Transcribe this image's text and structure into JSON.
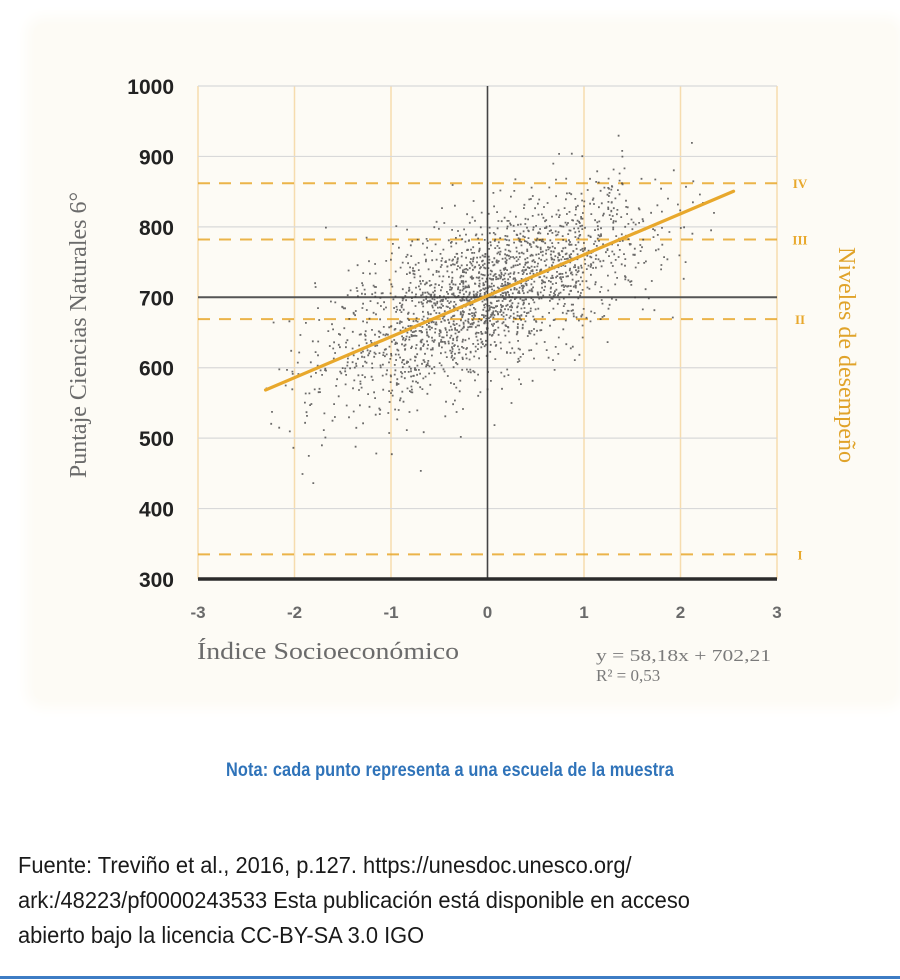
{
  "chart_data": {
    "type": "scatter",
    "title": "",
    "xlabel": "Índice Socioeconómico",
    "ylabel": "Puntaje Ciencias Naturales 6°",
    "secondary_ylabel": "Niveles de desempeño",
    "xlim": [
      -3,
      3
    ],
    "ylim": [
      300,
      1000
    ],
    "x_ticks": [
      "-3",
      "-2",
      "-1",
      "0",
      "1",
      "2",
      "3"
    ],
    "y_ticks": [
      "1000",
      "900",
      "800",
      "700",
      "600",
      "500",
      "400",
      "300"
    ],
    "grid": true,
    "regression": {
      "equation": "y = 58,18x + 702,21",
      "r_squared": "R² = 0,53",
      "slope": 58.18,
      "intercept": 702.21,
      "x_range": [
        -2.3,
        2.55
      ]
    },
    "performance_levels": [
      {
        "label": "IV",
        "score": 862
      },
      {
        "label": "III",
        "score": 782
      },
      {
        "label": "II",
        "score": 669
      },
      {
        "label": "I",
        "score": 335
      }
    ],
    "reference_lines": {
      "x": 0,
      "y": 700
    },
    "point_cloud": {
      "count": 2200,
      "x_mean": 0.0,
      "x_sd": 0.85,
      "x_min": -2.4,
      "x_max": 2.35,
      "residual_sd": 55,
      "description": "cada punto representa a una escuela de la muestra"
    },
    "colors": {
      "points": "#3a3a3a",
      "regression": "#e8a82c",
      "levels": "#e8a82c",
      "grid_vertical": "#f6dcae",
      "grid_horizontal": "#d9d9d9",
      "axis": "#2b2b2b"
    }
  },
  "note": "Nota: cada punto representa a una escuela de la muestra",
  "source": {
    "lines": [
      "Fuente: Treviño et al., 2016, p.127. https://unesdoc.unesco.org/",
      "ark:/48223/pf0000243533  Esta publicación está disponible en acceso",
      "abierto bajo la licencia CC-BY-SA 3.0 IGO"
    ]
  }
}
